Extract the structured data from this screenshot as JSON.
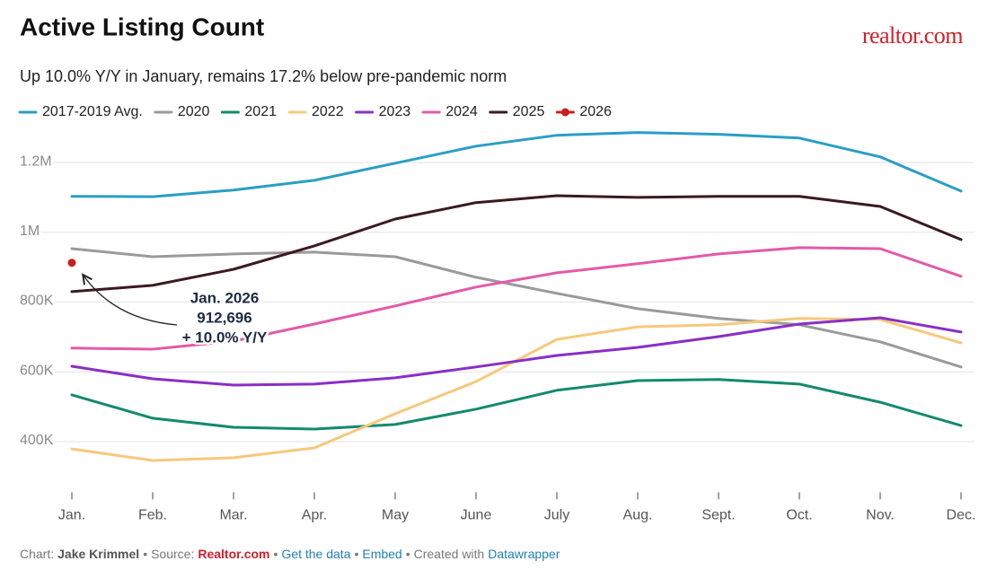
{
  "chart_data": {
    "type": "line",
    "title": "Active Listing Count",
    "subtitle": "Up 10.0% Y/Y in January, remains 17.2% below pre-pandemic norm",
    "logo": "realtor.com",
    "categories": [
      "Jan.",
      "Feb.",
      "Mar.",
      "Apr.",
      "May",
      "June",
      "July",
      "Aug.",
      "Sept.",
      "Oct.",
      "Nov.",
      "Dec."
    ],
    "ylim": [
      260000,
      1320000
    ],
    "yticks": [
      {
        "value": 400000,
        "label": "400K"
      },
      {
        "value": 600000,
        "label": "600K"
      },
      {
        "value": 800000,
        "label": "800K"
      },
      {
        "value": 1000000,
        "label": "1M"
      },
      {
        "value": 1200000,
        "label": "1.2M"
      }
    ],
    "grid": true,
    "legend": "top",
    "series": [
      {
        "name": "2017-2019 Avg.",
        "color": "#2a9ec6",
        "values": [
          1103000,
          1102000,
          1121000,
          1149000,
          1198000,
          1247000,
          1278000,
          1286000,
          1281000,
          1270000,
          1216000,
          1118000
        ]
      },
      {
        "name": "2020",
        "color": "#9a9a9a",
        "values": [
          953000,
          930000,
          938000,
          943000,
          930000,
          871000,
          825000,
          781000,
          753000,
          735000,
          686000,
          614000
        ]
      },
      {
        "name": "2021",
        "color": "#138a6e",
        "values": [
          534000,
          467000,
          441000,
          436000,
          449000,
          493000,
          547000,
          575000,
          578000,
          565000,
          513000,
          446000
        ]
      },
      {
        "name": "2022",
        "color": "#f5c97c",
        "values": [
          379000,
          346000,
          354000,
          382000,
          480000,
          572000,
          693000,
          729000,
          735000,
          753000,
          750000,
          683000
        ]
      },
      {
        "name": "2023",
        "color": "#8a2fc4",
        "values": [
          616000,
          580000,
          562000,
          565000,
          583000,
          614000,
          647000,
          670000,
          701000,
          737000,
          755000,
          714000
        ]
      },
      {
        "name": "2024",
        "color": "#e35aa9",
        "values": [
          668000,
          665000,
          688000,
          737000,
          789000,
          843000,
          884000,
          910000,
          938000,
          956000,
          953000,
          874000
        ]
      },
      {
        "name": "2025",
        "color": "#3b1a1f",
        "values": [
          830000,
          848000,
          894000,
          961000,
          1038000,
          1085000,
          1105000,
          1100000,
          1103000,
          1103000,
          1074000,
          979000
        ]
      },
      {
        "name": "2026",
        "color": "#c8201c",
        "style": "dot",
        "values": [
          912696,
          null,
          null,
          null,
          null,
          null,
          null,
          null,
          null,
          null,
          null,
          null
        ],
        "value_labels": [
          "912,696",
          null,
          null,
          null,
          null,
          null,
          null,
          null,
          null,
          null,
          null,
          null
        ]
      }
    ],
    "annotation": {
      "title": "Jan. 2026",
      "note": "+ 10.0% Y/Y"
    },
    "footer": [
      "Chart:",
      "Jake Krimmel",
      "•",
      "Source:",
      "Realtor.com",
      "•",
      "Get the data",
      "•",
      "Embed",
      "•",
      "Created with",
      "Datawrapper"
    ]
  }
}
